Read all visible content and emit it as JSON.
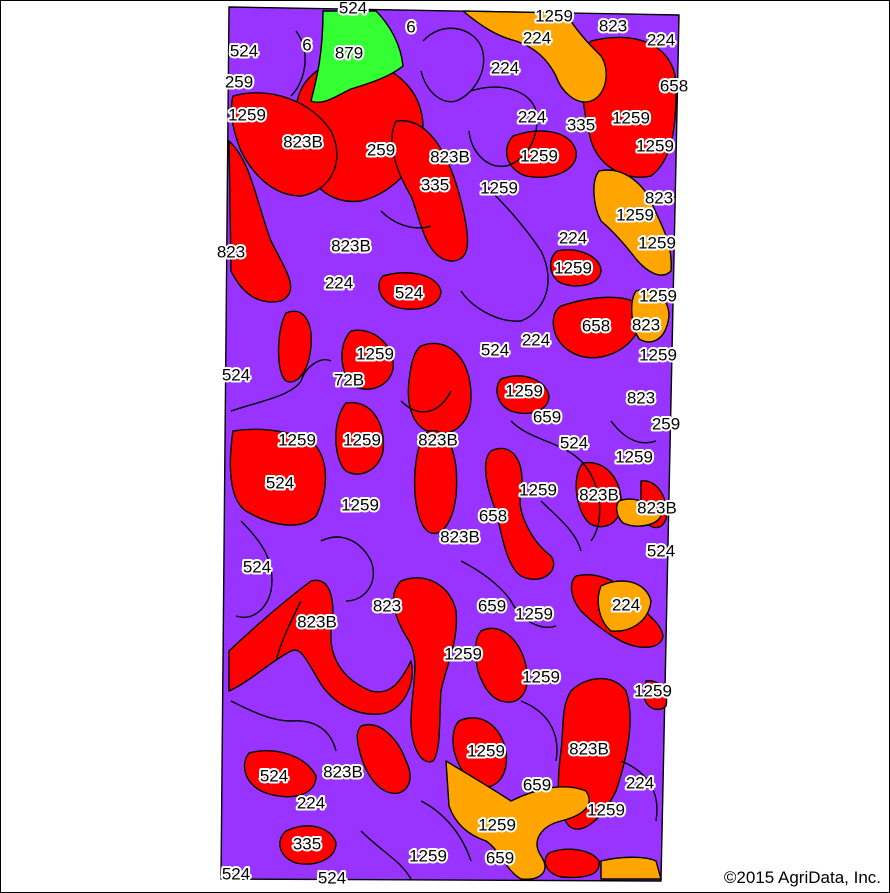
{
  "map": {
    "colors": {
      "purple": "#9933ff",
      "red": "#ff0000",
      "orange": "#ffa500",
      "green": "#33ff33",
      "outline": "#000000"
    },
    "labels": [
      "524",
      "6",
      "6",
      "879",
      "1259",
      "823",
      "224",
      "224",
      "524",
      "259",
      "224",
      "658",
      "1259",
      "224",
      "335",
      "1259",
      "823B",
      "1259",
      "259",
      "823B",
      "1259",
      "335",
      "1259",
      "823",
      "1259",
      "823",
      "823B",
      "224",
      "1259",
      "224",
      "1259",
      "524",
      "1259",
      "658",
      "823",
      "524",
      "224",
      "1259",
      "1259",
      "524",
      "72B",
      "1259",
      "823",
      "659",
      "259",
      "1259",
      "1259",
      "823B",
      "524",
      "1259",
      "524",
      "1259",
      "823B",
      "1259",
      "823B",
      "658",
      "823B",
      "524",
      "524",
      "823",
      "659",
      "1259",
      "224",
      "823B",
      "1259",
      "1259",
      "1259",
      "1259",
      "823B",
      "524",
      "823B",
      "224",
      "224",
      "659",
      "1259",
      "335",
      "1259",
      "524",
      "524",
      "1259",
      "659"
    ],
    "copyright": "©2015 AgriData, Inc."
  }
}
